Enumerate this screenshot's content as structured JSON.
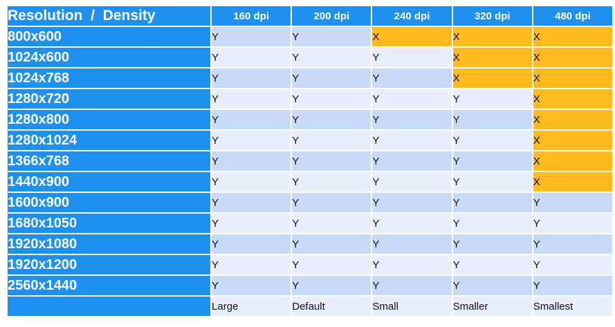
{
  "table": {
    "corner_label": "Resolution  /  Density",
    "columns": [
      "160 dpi",
      "200 dpi",
      "240 dpi",
      "320 dpi",
      "480 dpi"
    ],
    "rows": [
      {
        "label": "800x600",
        "cells": [
          "Y",
          "Y",
          "X",
          "X",
          "X"
        ]
      },
      {
        "label": "1024x600",
        "cells": [
          "Y",
          "Y",
          "Y",
          "X",
          "X"
        ]
      },
      {
        "label": "1024x768",
        "cells": [
          "Y",
          "Y",
          "Y",
          "X",
          "X"
        ]
      },
      {
        "label": "1280x720",
        "cells": [
          "Y",
          "Y",
          "Y",
          "Y",
          "X"
        ]
      },
      {
        "label": "1280x800",
        "cells": [
          "Y",
          "Y",
          "Y",
          "Y",
          "X"
        ]
      },
      {
        "label": "1280x1024",
        "cells": [
          "Y",
          "Y",
          "Y",
          "Y",
          "X"
        ]
      },
      {
        "label": "1366x768",
        "cells": [
          "Y",
          "Y",
          "Y",
          "Y",
          "X"
        ]
      },
      {
        "label": "1440x900",
        "cells": [
          "Y",
          "Y",
          "Y",
          "Y",
          "X"
        ]
      },
      {
        "label": "1600x900",
        "cells": [
          "Y",
          "Y",
          "Y",
          "Y",
          "Y"
        ]
      },
      {
        "label": "1680x1050",
        "cells": [
          "Y",
          "Y",
          "Y",
          "Y",
          "Y"
        ]
      },
      {
        "label": "1920x1080",
        "cells": [
          "Y",
          "Y",
          "Y",
          "Y",
          "Y"
        ]
      },
      {
        "label": "1920x1200",
        "cells": [
          "Y",
          "Y",
          "Y",
          "Y",
          "Y"
        ]
      },
      {
        "label": "2560x1440",
        "cells": [
          "Y",
          "Y",
          "Y",
          "Y",
          "Y"
        ]
      }
    ],
    "footer": [
      "Large",
      "Default",
      "Small",
      "Smaller",
      "Smallest"
    ]
  },
  "colors": {
    "header_blue": "#1e90f0",
    "band_dark": "#c9daf6",
    "band_light": "#e8eefb",
    "unsupported_orange": "#ffba1f"
  }
}
